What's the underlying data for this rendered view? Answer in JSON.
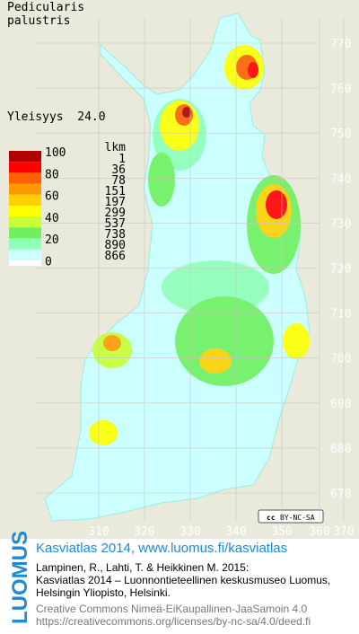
{
  "header": {
    "title_lines": [
      "Pedicularis",
      "palustris"
    ],
    "frequency": "Yleisyys  24.0"
  },
  "legend": {
    "scale_labels": [
      100,
      80,
      60,
      40,
      20,
      0
    ],
    "count_header": "lkm",
    "counts": [
      1,
      36,
      78,
      151,
      197,
      299,
      537,
      738,
      890,
      866
    ],
    "colors": [
      "#b00000",
      "#ff0000",
      "#ff6000",
      "#ff9a00",
      "#ffd000",
      "#ffff00",
      "#c8ff30",
      "#70f060",
      "#90ffb8",
      "#ccffff"
    ]
  },
  "map": {
    "y_labels": [
      770,
      760,
      750,
      740,
      730,
      720,
      710,
      700,
      690,
      680,
      670
    ],
    "x_labels": [
      310,
      320,
      330,
      340,
      350,
      360,
      370
    ]
  },
  "badge": {
    "icon": "cc",
    "text": "BY-NC-SA"
  },
  "footer": {
    "logo": "LUOMUS",
    "link": "Kasviatlas 2014, www.luomus.fi/kasviatlas",
    "citation": [
      "Lampinen, R., Lahti, T. & Heikkinen M. 2015:",
      "Kasviatlas 2014 – Luonnontieteellinen keskusmuseo Luomus,",
      "Helsingin Yliopisto, Helsinki."
    ],
    "license": [
      "Creative Commons Nimeä-EiKaupallinen-JaaSamoin 4.0",
      "https://creativecommons.org/licenses/by-nc-sa/4.0/deed.fi"
    ]
  }
}
